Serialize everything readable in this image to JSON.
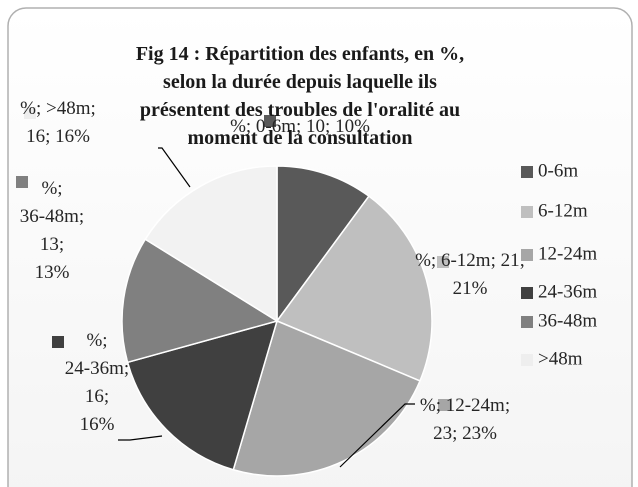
{
  "chart_data": {
    "type": "pie",
    "title": "Fig 14 : Répartition des enfants, en %, selon la durée depuis laquelle ils présentent des troubles de l'oralité au moment de la consultation",
    "categories": [
      "0-6m",
      "6-12m",
      "12-24m",
      "24-36m",
      "36-48m",
      ">48m"
    ],
    "values": [
      10,
      21,
      23,
      16,
      13,
      16
    ],
    "value_labels": [
      "%; 0-6m; 10; 10%",
      "%; 6-12m; 21; 21%",
      "%; 12-24m; 23; 23%",
      "%; 24-36m; 16; 16%",
      "%; 36-48m; 13; 13%",
      "%; >48m; 16; 16%"
    ],
    "colors": [
      "#595959",
      "#bfbfbf",
      "#a6a6a6",
      "#404040",
      "#808080",
      "#f2f2f2"
    ],
    "legend": "right"
  }
}
